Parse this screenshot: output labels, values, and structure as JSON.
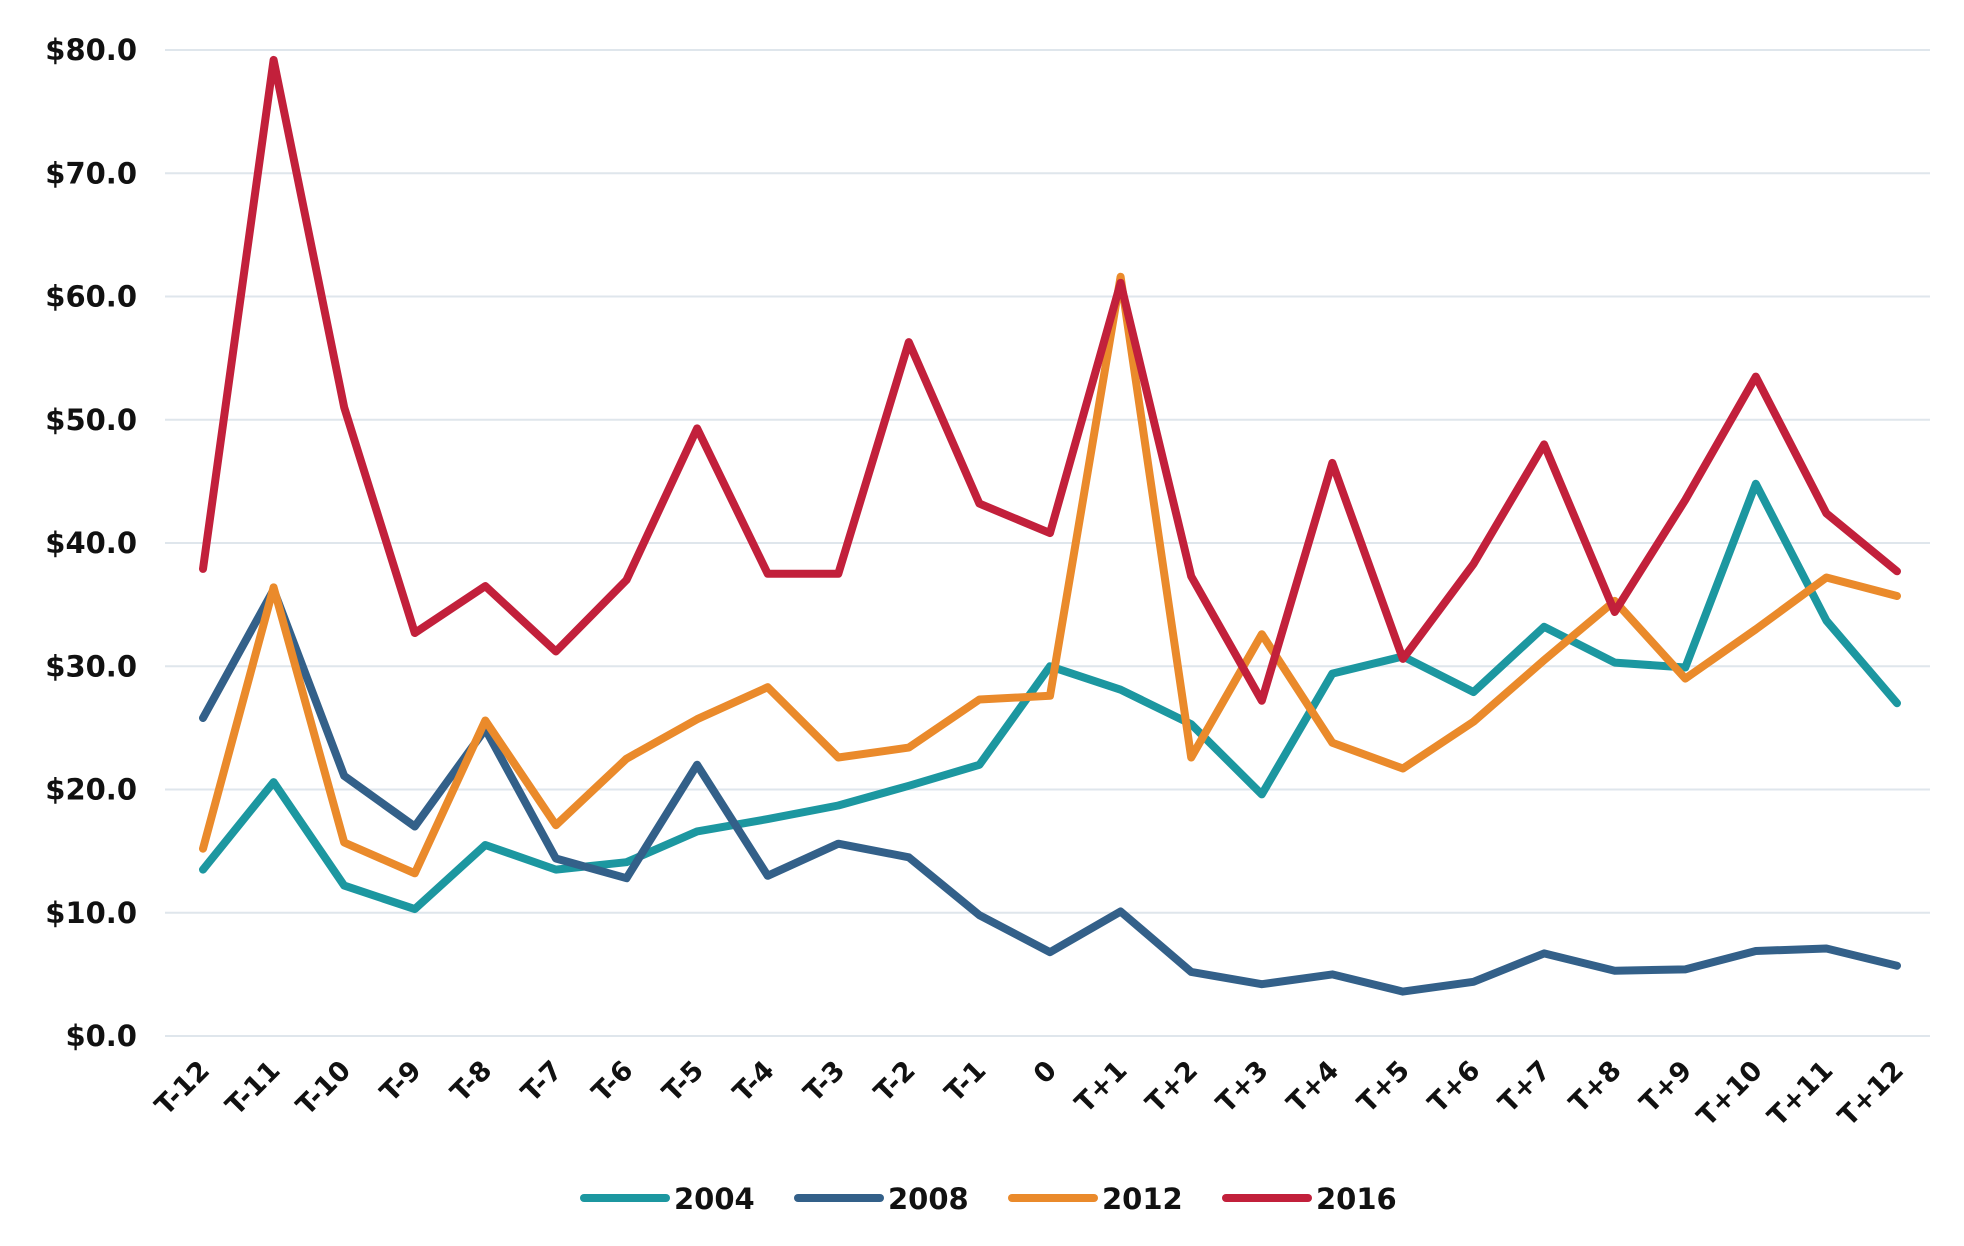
{
  "chart_data": {
    "type": "line",
    "title": "",
    "xlabel": "",
    "ylabel": "",
    "ylim": [
      0,
      80
    ],
    "yticks": [
      "$0.0",
      "$10.0",
      "$20.0",
      "$30.0",
      "$40.0",
      "$50.0",
      "$60.0",
      "$70.0",
      "$80.0"
    ],
    "grid": true,
    "legend_position": "bottom",
    "categories": [
      "T-12",
      "T-11",
      "T-10",
      "T-9",
      "T-8",
      "T-7",
      "T-6",
      "T-5",
      "T-4",
      "T-3",
      "T-2",
      "T-1",
      "0",
      "T+1",
      "T+2",
      "T+3",
      "T+4",
      "T+5",
      "T+6",
      "T+7",
      "T+8",
      "T+9",
      "T+10",
      "T+11",
      "T+12"
    ],
    "series": [
      {
        "name": "2004",
        "color": "#1c97a0",
        "values": [
          13.5,
          20.6,
          12.2,
          10.3,
          15.5,
          13.5,
          14.1,
          16.6,
          17.6,
          18.7,
          20.3,
          22.0,
          30.0,
          28.1,
          25.3,
          19.6,
          29.4,
          30.8,
          27.9,
          33.2,
          30.3,
          29.9,
          44.8,
          33.7,
          27.0
        ]
      },
      {
        "name": "2008",
        "color": "#336089",
        "values": [
          25.8,
          36.2,
          21.1,
          17.0,
          24.9,
          14.4,
          12.8,
          22.0,
          13.0,
          15.6,
          14.5,
          9.8,
          6.8,
          10.1,
          5.2,
          4.2,
          5.0,
          3.6,
          4.4,
          6.7,
          5.3,
          5.4,
          6.9,
          7.1,
          5.7
        ]
      },
      {
        "name": "2012",
        "color": "#ea8a2b",
        "values": [
          15.2,
          36.4,
          15.7,
          13.2,
          25.6,
          17.1,
          22.5,
          25.7,
          28.3,
          22.6,
          23.4,
          27.3,
          27.6,
          61.6,
          22.6,
          32.6,
          23.8,
          21.7,
          25.5,
          30.5,
          35.3,
          29.0,
          33.0,
          37.2,
          35.7
        ]
      },
      {
        "name": "2016",
        "color": "#c2203b",
        "values": [
          37.9,
          79.2,
          51.0,
          32.7,
          36.5,
          31.2,
          37.0,
          49.3,
          37.5,
          37.5,
          56.3,
          43.2,
          40.8,
          61.1,
          37.3,
          27.2,
          46.5,
          30.6,
          38.3,
          48.0,
          34.4,
          43.5,
          53.5,
          42.4,
          37.7
        ]
      }
    ]
  }
}
